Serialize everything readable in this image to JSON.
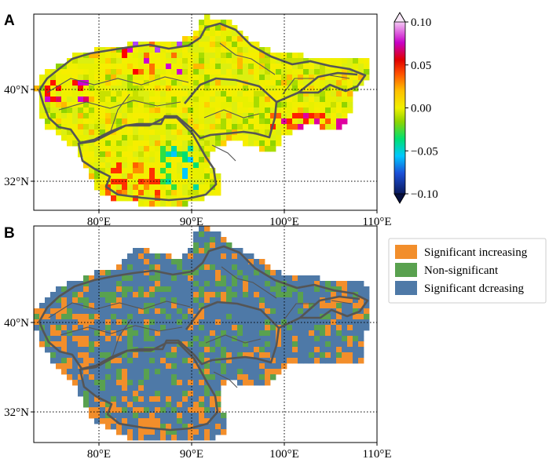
{
  "panels": [
    {
      "label": "A",
      "lon_ticks": [
        "80°E",
        "90°E",
        "100°E",
        "110°E"
      ],
      "lat_ticks": [
        "40°N",
        "32°N"
      ],
      "colorbar": {
        "ticks": [
          "0.10",
          "0.05",
          "0.00",
          "−0.05",
          "−0.10"
        ],
        "values": [
          0.1,
          0.05,
          0.0,
          -0.05,
          -0.1
        ],
        "range": [
          -0.1,
          0.1
        ],
        "extend": "both"
      }
    },
    {
      "label": "B",
      "lon_ticks": [
        "80°E",
        "90°E",
        "100°E",
        "110°E"
      ],
      "lat_ticks": [
        "40°N",
        "32°N"
      ],
      "legend": [
        {
          "label": "Significant increasing",
          "color": "#f28e2b"
        },
        {
          "label": "Non-significant",
          "color": "#59a14f"
        },
        {
          "label": "Significant dcreasing",
          "color": "#4e79a7"
        }
      ]
    }
  ],
  "map": {
    "lon_range": [
      73,
      110
    ],
    "lat_range": [
      29.5,
      45
    ],
    "gridlines": {
      "lon": [
        80,
        90,
        100
      ],
      "lat": [
        40,
        32
      ],
      "style": "dotted"
    }
  }
}
